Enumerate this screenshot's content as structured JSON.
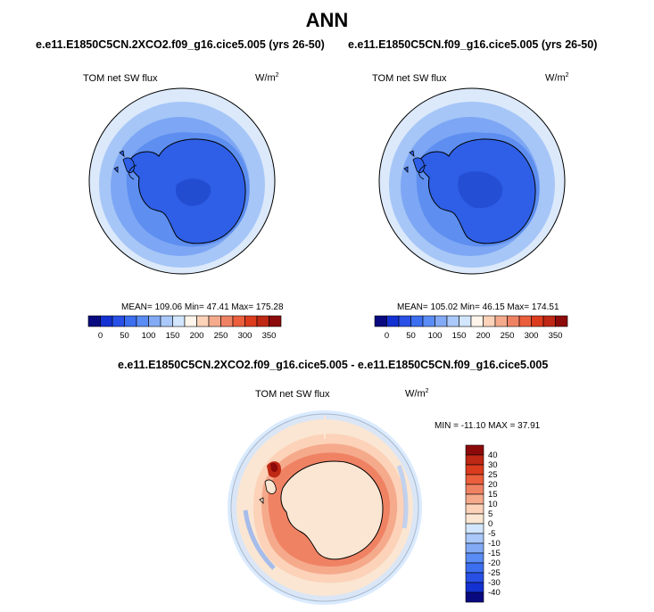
{
  "main_title": "ANN",
  "panels": [
    {
      "case_title": "e.e11.E1850C5CN.2XCO2.f09_g16.cice5.005 (yrs 26-50)",
      "var_label": "TOM net SW flux",
      "unit_base": "W/m",
      "unit_exp": "2",
      "stats": "MEAN= 109.06  Min=  47.41  Max= 175.28"
    },
    {
      "case_title": "e.e11.E1850C5CN.f09_g16.cice5.005 (yrs 26-50)",
      "var_label": "TOM net SW flux",
      "unit_base": "W/m",
      "unit_exp": "2",
      "stats": "MEAN= 105.02  Min=  46.15  Max= 174.51"
    },
    {
      "case_title": "e.e11.E1850C5CN.2XCO2.f09_g16.cice5.005 - e.e11.E1850C5CN.f09_g16.cice5.005",
      "var_label": "TOM net SW flux",
      "unit_base": "W/m",
      "unit_exp": "2",
      "stats": "MIN = -11.10 MAX =  37.91"
    }
  ],
  "colorbar_horizontal": {
    "labels": [
      "0",
      "50",
      "100",
      "150",
      "200",
      "250",
      "300",
      "350"
    ],
    "colors": [
      "#0a0a80",
      "#1432d2",
      "#2850e6",
      "#3c6ef0",
      "#5a8cf5",
      "#82aaf5",
      "#aac8fa",
      "#d2e6ff",
      "#fff5eb",
      "#fcd2b9",
      "#f5aa8c",
      "#f08264",
      "#eb5f3c",
      "#dc3c1e",
      "#be2814",
      "#8c0a0a"
    ]
  },
  "colorbar_vertical": {
    "labels": [
      "40",
      "30",
      "25",
      "20",
      "15",
      "10",
      "5",
      "0",
      "-5",
      "-10",
      "-15",
      "-20",
      "-25",
      "-30",
      "-40"
    ],
    "colors": [
      "#8c0a0a",
      "#be2814",
      "#dc3c1e",
      "#eb5f3c",
      "#f08264",
      "#f5aa8c",
      "#fcd2b9",
      "#fae6d2",
      "#d2e6ff",
      "#aac8fa",
      "#82aaf5",
      "#5a8cf5",
      "#3c6ef0",
      "#2850e6",
      "#1432d2",
      "#0a0a80"
    ]
  }
}
